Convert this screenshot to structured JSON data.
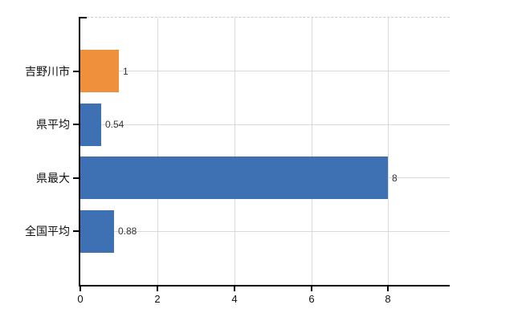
{
  "chart_data": {
    "type": "bar",
    "orientation": "horizontal",
    "title": "",
    "xlabel": "",
    "ylabel": "",
    "categories": [
      "吉野川市",
      "県平均",
      "県最大",
      "全国平均"
    ],
    "values": [
      1,
      0.54,
      8,
      0.88
    ],
    "value_labels": [
      "1",
      "0.54",
      "8",
      "0.88"
    ],
    "bar_colors": [
      "#ef913c",
      "#3e70b4",
      "#3e70b4",
      "#3e70b4"
    ],
    "x_ticks": [
      0,
      2,
      4,
      6,
      8
    ],
    "x_tick_labels": [
      "0",
      "2",
      "4",
      "6",
      "8"
    ],
    "xlim": [
      0,
      9.6
    ],
    "grid": true,
    "legend_position": "none",
    "colors": {
      "bar_blue": "#3e70b4",
      "bar_orange": "#ef913c",
      "grid": "#d9d9d9",
      "axis": "#000000",
      "value_label": "#333333",
      "tick_label": "#111111",
      "top_border": "#cccccc",
      "background": "#ffffff"
    }
  }
}
